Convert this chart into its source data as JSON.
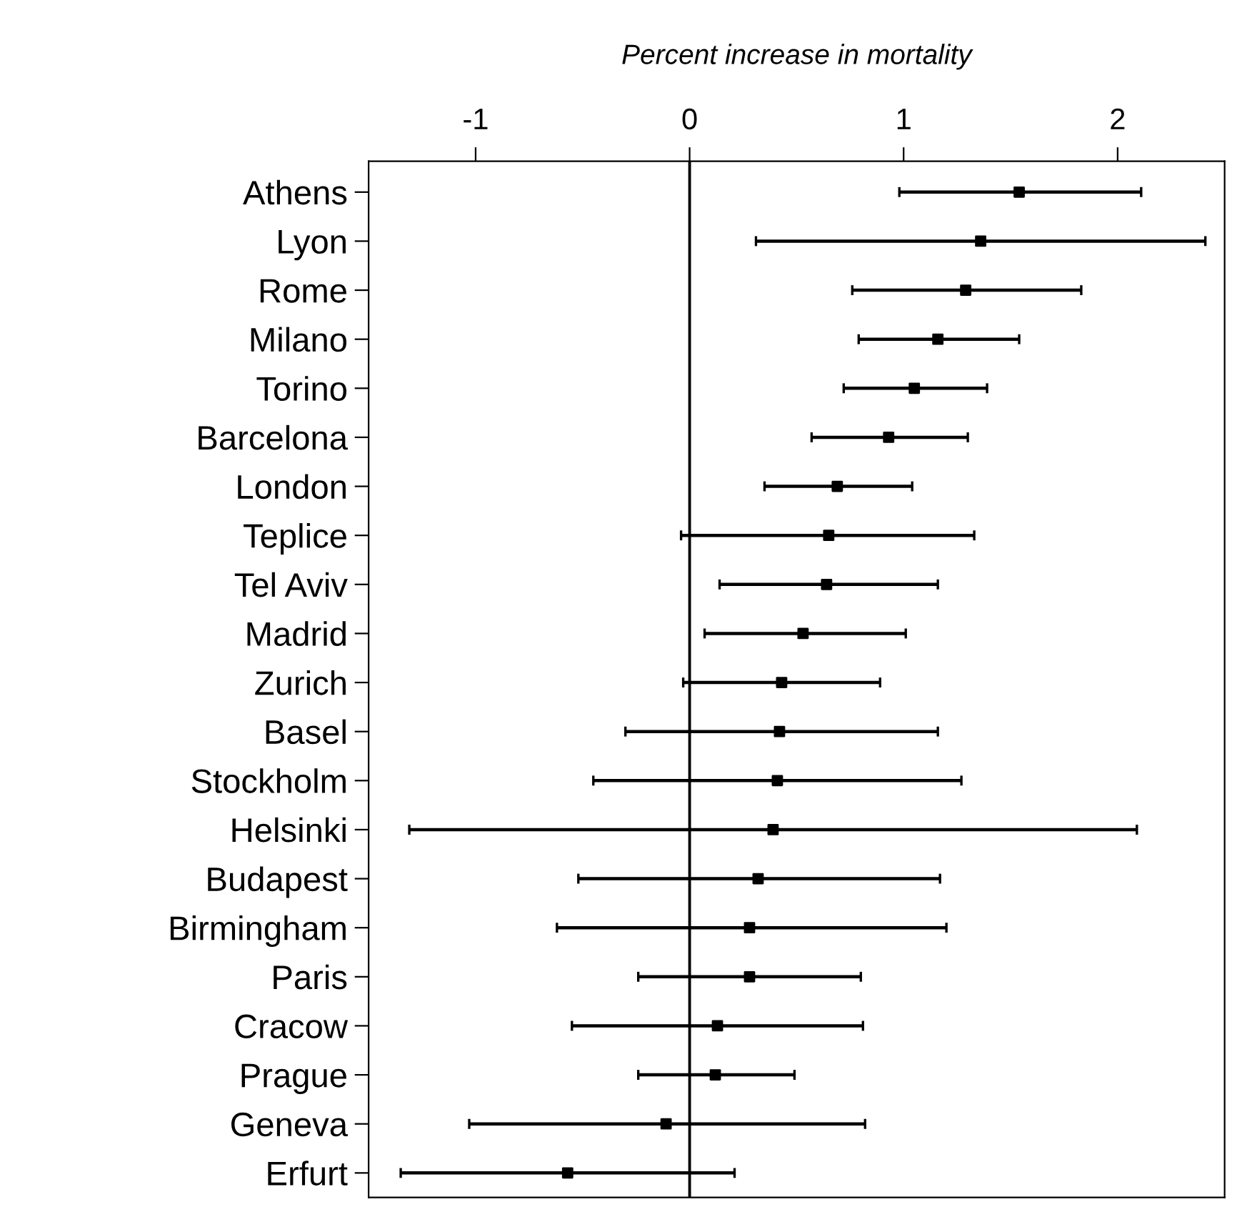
{
  "chart_data": {
    "type": "scatter",
    "orientation": "horizontal",
    "xlabel": "Percent increase in mortality",
    "categories": [
      "Athens",
      "Lyon",
      "Rome",
      "Milano",
      "Torino",
      "Barcelona",
      "London",
      "Teplice",
      "Tel Aviv",
      "Madrid",
      "Zurich",
      "Basel",
      "Stockholm",
      "Helsinki",
      "Budapest",
      "Birmingham",
      "Paris",
      "Cracow",
      "Prague",
      "Geneva",
      "Erfurt"
    ],
    "series": [
      {
        "color": "#000000",
        "values": [
          1.54,
          1.36,
          1.29,
          1.16,
          1.05,
          0.93,
          0.69,
          0.65,
          0.64,
          0.53,
          0.43,
          0.42,
          0.41,
          0.39,
          0.32,
          0.28,
          0.28,
          0.13,
          0.12,
          -0.11,
          -0.57
        ],
        "errors": [
          [
            0.98,
            2.11
          ],
          [
            0.31,
            2.41
          ],
          [
            0.76,
            1.83
          ],
          [
            0.79,
            1.54
          ],
          [
            0.72,
            1.39
          ],
          [
            0.57,
            1.3
          ],
          [
            0.35,
            1.04
          ],
          [
            -0.04,
            1.33
          ],
          [
            0.14,
            1.16
          ],
          [
            0.07,
            1.01
          ],
          [
            -0.03,
            0.89
          ],
          [
            -0.3,
            1.16
          ],
          [
            -0.45,
            1.27
          ],
          [
            -1.31,
            2.09
          ],
          [
            -0.52,
            1.17
          ],
          [
            -0.62,
            1.2
          ],
          [
            -0.24,
            0.8
          ],
          [
            -0.55,
            0.81
          ],
          [
            -0.24,
            0.49
          ],
          [
            -1.03,
            0.82
          ],
          [
            -1.35,
            0.21
          ]
        ]
      }
    ],
    "xlim": [
      -1.5,
      2.5
    ],
    "xticks": [
      -1,
      0,
      1,
      2
    ],
    "ref_lines": [
      {
        "axis": "x",
        "value": 0,
        "color": "#000000"
      }
    ],
    "marker": "square",
    "grid": false,
    "legend": false
  }
}
